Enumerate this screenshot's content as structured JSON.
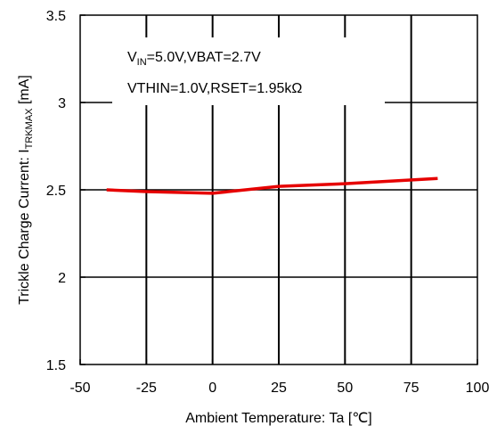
{
  "chart_data": {
    "type": "line",
    "title": "",
    "xlabel": "Ambient Temperature: Ta [℃]",
    "ylabel": {
      "prefix": "Trickle Charge Current: I",
      "subscript": "TRKMAX",
      "suffix": " [mA]"
    },
    "xlim": [
      -50,
      100
    ],
    "ylim": [
      1.5,
      3.5
    ],
    "xticks": [
      -50,
      -25,
      0,
      25,
      50,
      75,
      100
    ],
    "yticks": [
      1.5,
      2,
      2.5,
      3,
      3.5
    ],
    "xtick_labels": [
      "-50",
      "-25",
      "0",
      "25",
      "50",
      "75",
      "100"
    ],
    "ytick_labels": [
      "1.5",
      "2",
      "2.5",
      "3",
      "3.5"
    ],
    "grid": true,
    "series": [
      {
        "color": "#e60000",
        "x": [
          -40,
          -25,
          0,
          25,
          50,
          85
        ],
        "y": [
          2.5,
          2.49,
          2.48,
          2.52,
          2.535,
          2.565
        ]
      }
    ],
    "annotations": {
      "line1": {
        "v": "V",
        "v_sub": "IN",
        "rest": "=5.0V,VBAT=2.7V"
      },
      "line2": "VTHIN=1.0V,RSET=1.95kΩ"
    },
    "colors": {
      "axis": "#000000",
      "grid": "#000000",
      "line": "#e60000"
    }
  }
}
